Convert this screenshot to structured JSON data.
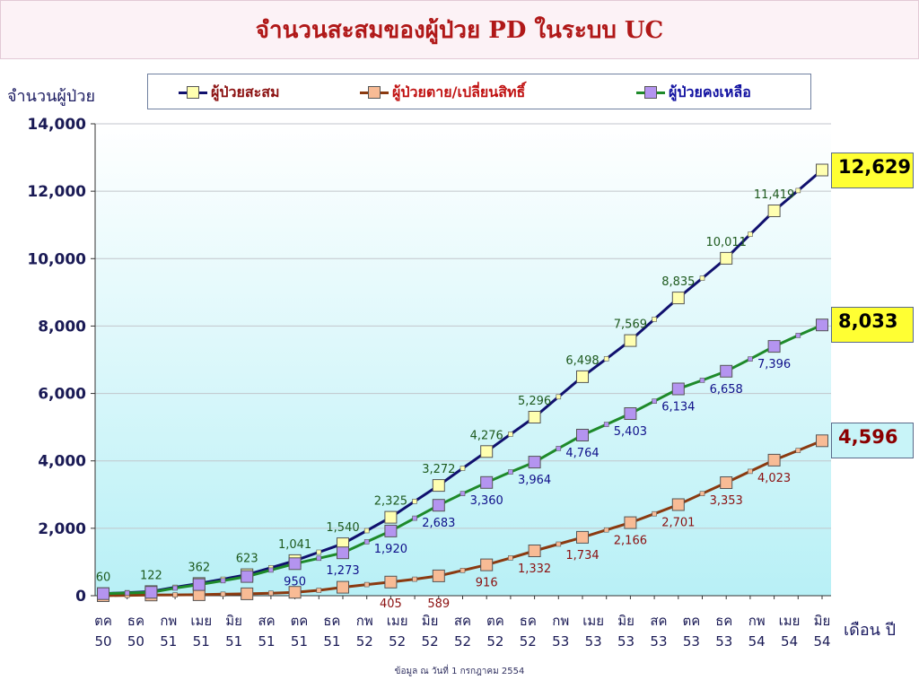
{
  "page": {
    "title": "จำนวนสะสมของผู้ป่วย PD ในระบบ UC",
    "source_note": "ข้อมูล ณ วันที่ 1 กรกฎาคม 2554"
  },
  "chart_data": {
    "type": "line",
    "title": "จำนวนสะสมของผู้ป่วย PD ในระบบ UC",
    "ylabel": "จำนวนผู้ป่วย",
    "xlabel": "เดือน ปี",
    "ylim": [
      0,
      14000
    ],
    "yticks": [
      "0",
      "2,000",
      "4,000",
      "6,000",
      "8,000",
      "10,000",
      "12,000",
      "14,000"
    ],
    "grid": "horizontal",
    "legend_position": "top",
    "x_ticks": [
      [
        "ตค",
        "50"
      ],
      [
        "ธค",
        "50"
      ],
      [
        "กพ",
        "51"
      ],
      [
        "เมย",
        "51"
      ],
      [
        "มิย",
        "51"
      ],
      [
        "สค",
        "51"
      ],
      [
        "ตค",
        "51"
      ],
      [
        "ธค",
        "51"
      ],
      [
        "กพ",
        "52"
      ],
      [
        "เมย",
        "52"
      ],
      [
        "มิย",
        "52"
      ],
      [
        "สค",
        "52"
      ],
      [
        "ตค",
        "52"
      ],
      [
        "ธค",
        "52"
      ],
      [
        "กพ",
        "53"
      ],
      [
        "เมย",
        "53"
      ],
      [
        "มิย",
        "53"
      ],
      [
        "สค",
        "53"
      ],
      [
        "ตค",
        "53"
      ],
      [
        "ธค",
        "53"
      ],
      [
        "กพ",
        "54"
      ],
      [
        "เมย",
        "54"
      ],
      [
        "มิย",
        "54"
      ]
    ],
    "series": [
      {
        "name": "ผู้ป่วยสะสม",
        "line_color": "#10106e",
        "marker_color": "#ffffb0",
        "label_color": "#1e5a1e",
        "values": [
          60,
          90,
          122,
          250,
          362,
          490,
          623,
          830,
          1041,
          1290,
          1540,
          1930,
          2325,
          2800,
          3272,
          3780,
          4276,
          4790,
          5296,
          5900,
          6498,
          7030,
          7569,
          8200,
          8835,
          9420,
          10011,
          10720,
          11419,
          12020,
          12629
        ],
        "labels": [
          {
            "i": 0,
            "text": "60"
          },
          {
            "i": 2,
            "text": "122"
          },
          {
            "i": 4,
            "text": "362"
          },
          {
            "i": 6,
            "text": "623"
          },
          {
            "i": 8,
            "text": "1,041"
          },
          {
            "i": 10,
            "text": "1,540"
          },
          {
            "i": 12,
            "text": "2,325"
          },
          {
            "i": 14,
            "text": "3,272"
          },
          {
            "i": 16,
            "text": "4,276"
          },
          {
            "i": 18,
            "text": "5,296"
          },
          {
            "i": 20,
            "text": "6,498"
          },
          {
            "i": 22,
            "text": "7,569"
          },
          {
            "i": 24,
            "text": "8,835"
          },
          {
            "i": 26,
            "text": "10,011"
          },
          {
            "i": 28,
            "text": "11,419"
          }
        ],
        "end_callout": "12,629",
        "callout_bg": "#ffff33",
        "callout_color": "#000000"
      },
      {
        "name": "ผู้ป่วยตาย/เปลี่ยนสิทธิ์",
        "line_color": "#8b3a10",
        "marker_color": "#f8bb95",
        "label_color": "#8b1010",
        "values": [
          0,
          10,
          20,
          25,
          30,
          45,
          55,
          75,
          100,
          160,
          250,
          330,
          405,
          490,
          589,
          750,
          916,
          1120,
          1332,
          1530,
          1734,
          1950,
          2166,
          2430,
          2701,
          3030,
          3353,
          3690,
          4023,
          4310,
          4596
        ],
        "labels": [
          {
            "i": 12,
            "text": "405"
          },
          {
            "i": 14,
            "text": "589"
          },
          {
            "i": 16,
            "text": "916"
          },
          {
            "i": 18,
            "text": "1,332"
          },
          {
            "i": 20,
            "text": "1,734"
          },
          {
            "i": 22,
            "text": "2,166"
          },
          {
            "i": 24,
            "text": "2,701"
          },
          {
            "i": 26,
            "text": "3,353"
          },
          {
            "i": 28,
            "text": "4,023"
          }
        ],
        "end_callout": "4,596",
        "callout_bg": "#c8f4f8",
        "callout_color": "#8b0000"
      },
      {
        "name": "ผู้ป่วยคงเหลือ",
        "line_color": "#1e8a2a",
        "marker_color": "#b494f0",
        "label_color": "#10108a",
        "values": [
          60,
          80,
          100,
          225,
          330,
          445,
          570,
          760,
          950,
          1110,
          1273,
          1600,
          1920,
          2300,
          2683,
          3030,
          3360,
          3670,
          3964,
          4370,
          4764,
          5080,
          5403,
          5770,
          6134,
          6390,
          6658,
          7020,
          7396,
          7720,
          8033
        ],
        "labels": [
          {
            "i": 8,
            "text": "950"
          },
          {
            "i": 10,
            "text": "1,273"
          },
          {
            "i": 12,
            "text": "1,920"
          },
          {
            "i": 14,
            "text": "2,683"
          },
          {
            "i": 16,
            "text": "3,360"
          },
          {
            "i": 18,
            "text": "3,964"
          },
          {
            "i": 20,
            "text": "4,764"
          },
          {
            "i": 22,
            "text": "5,403"
          },
          {
            "i": 24,
            "text": "6,134"
          },
          {
            "i": 26,
            "text": "6,658"
          },
          {
            "i": 28,
            "text": "7,396"
          }
        ],
        "end_callout": "8,033",
        "callout_bg": "#ffff33",
        "callout_color": "#000000"
      }
    ]
  }
}
